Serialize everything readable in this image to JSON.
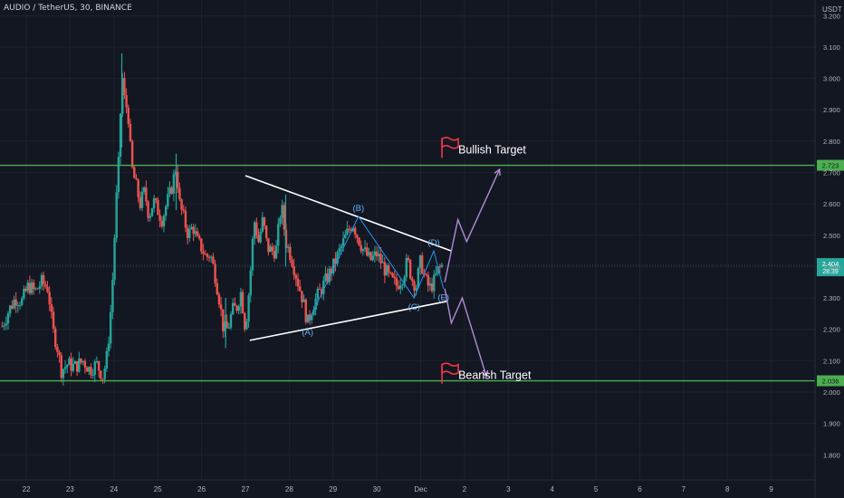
{
  "header": {
    "symbol_line": "AUDIO / TetherUS, 30, BINANCE",
    "price_unit": "USDT"
  },
  "colors": {
    "background": "#131722",
    "up": "#26a69a",
    "down": "#ef5350",
    "level": "#4caf50",
    "pattern": "#ffffff",
    "wave": "#2196f3",
    "projection": "#b28bd6",
    "flag": "#f23645"
  },
  "chart_data": {
    "type": "candlestick",
    "y_axis": {
      "range": [
        1.72,
        3.25
      ],
      "ticks": [
        "3.200",
        "3.100",
        "3.000",
        "2.900",
        "2.800",
        "2.700",
        "2.600",
        "2.500",
        "2.400",
        "2.300",
        "2.200",
        "2.100",
        "2.000",
        "1.900",
        "1.800"
      ],
      "tick_values": [
        3.2,
        3.1,
        3.0,
        2.9,
        2.8,
        2.7,
        2.6,
        2.5,
        2.4,
        2.3,
        2.2,
        2.1,
        2.0,
        1.9,
        1.8
      ]
    },
    "x_axis": {
      "range": [
        21.4,
        40.0
      ],
      "ticks": [
        "22",
        "23",
        "24",
        "25",
        "26",
        "27",
        "28",
        "29",
        "30",
        "Dec",
        "2",
        "3",
        "4",
        "5",
        "6",
        "7",
        "8",
        "9"
      ],
      "tick_values": [
        22,
        23,
        24,
        25,
        26,
        27,
        28,
        29,
        30,
        31,
        32,
        33,
        34,
        35,
        36,
        37,
        38,
        39
      ]
    },
    "price_path": [
      [
        21.45,
        2.21
      ],
      [
        21.6,
        2.26
      ],
      [
        21.75,
        2.3
      ],
      [
        21.9,
        2.29
      ],
      [
        22.05,
        2.34
      ],
      [
        22.2,
        2.32
      ],
      [
        22.35,
        2.35
      ],
      [
        22.5,
        2.33
      ],
      [
        22.6,
        2.2
      ],
      [
        22.7,
        2.15
      ],
      [
        22.8,
        2.07
      ],
      [
        22.95,
        2.09
      ],
      [
        23.1,
        2.08
      ],
      [
        23.3,
        2.1
      ],
      [
        23.45,
        2.07
      ],
      [
        23.6,
        2.09
      ],
      [
        23.75,
        2.05
      ],
      [
        23.85,
        2.12
      ],
      [
        23.95,
        2.3
      ],
      [
        24.05,
        2.6
      ],
      [
        24.12,
        2.76
      ],
      [
        24.18,
        3.02
      ],
      [
        24.25,
        2.92
      ],
      [
        24.32,
        2.9
      ],
      [
        24.4,
        2.72
      ],
      [
        24.5,
        2.66
      ],
      [
        24.6,
        2.6
      ],
      [
        24.7,
        2.64
      ],
      [
        24.8,
        2.56
      ],
      [
        24.9,
        2.61
      ],
      [
        25.0,
        2.58
      ],
      [
        25.1,
        2.55
      ],
      [
        25.2,
        2.6
      ],
      [
        25.3,
        2.64
      ],
      [
        25.42,
        2.72
      ],
      [
        25.5,
        2.6
      ],
      [
        25.6,
        2.55
      ],
      [
        25.7,
        2.5
      ],
      [
        25.8,
        2.53
      ],
      [
        25.9,
        2.48
      ],
      [
        26.0,
        2.46
      ],
      [
        26.1,
        2.43
      ],
      [
        26.2,
        2.44
      ],
      [
        26.3,
        2.38
      ],
      [
        26.4,
        2.3
      ],
      [
        26.5,
        2.2
      ],
      [
        26.6,
        2.2
      ],
      [
        26.7,
        2.26
      ],
      [
        26.8,
        2.27
      ],
      [
        26.9,
        2.32
      ],
      [
        27.0,
        2.2
      ],
      [
        27.1,
        2.35
      ],
      [
        27.2,
        2.55
      ],
      [
        27.3,
        2.48
      ],
      [
        27.4,
        2.55
      ],
      [
        27.5,
        2.46
      ],
      [
        27.6,
        2.45
      ],
      [
        27.7,
        2.45
      ],
      [
        27.82,
        2.6
      ],
      [
        27.92,
        2.48
      ],
      [
        28.05,
        2.43
      ],
      [
        28.2,
        2.35
      ],
      [
        28.3,
        2.3
      ],
      [
        28.42,
        2.22
      ],
      [
        28.55,
        2.28
      ],
      [
        28.7,
        2.32
      ],
      [
        28.85,
        2.36
      ],
      [
        29.0,
        2.4
      ],
      [
        29.15,
        2.45
      ],
      [
        29.3,
        2.5
      ],
      [
        29.45,
        2.54
      ],
      [
        29.55,
        2.5
      ],
      [
        29.7,
        2.45
      ],
      [
        29.85,
        2.42
      ],
      [
        30.0,
        2.44
      ],
      [
        30.15,
        2.4
      ],
      [
        30.3,
        2.36
      ],
      [
        30.45,
        2.34
      ],
      [
        30.6,
        2.37
      ],
      [
        30.7,
        2.42
      ],
      [
        30.8,
        2.36
      ],
      [
        30.9,
        2.34
      ],
      [
        31.0,
        2.42
      ],
      [
        31.1,
        2.36
      ],
      [
        31.2,
        2.33
      ],
      [
        31.3,
        2.35
      ],
      [
        31.4,
        2.39
      ],
      [
        31.5,
        2.404
      ]
    ],
    "candle_wicks": [
      [
        24.18,
        3.08,
        2.78
      ],
      [
        27.92,
        2.63,
        2.4
      ],
      [
        25.42,
        2.76,
        2.58
      ],
      [
        26.55,
        2.3,
        2.14
      ]
    ],
    "levels": [
      {
        "name": "resistance",
        "value": 2.723,
        "label": "2.723"
      },
      {
        "name": "current",
        "value": 2.404,
        "label": "2.404",
        "countdown": "28:39"
      },
      {
        "name": "support",
        "value": 2.036,
        "label": "2.036"
      }
    ],
    "triangle": {
      "upper": [
        [
          27.0,
          2.69
        ],
        [
          31.7,
          2.45
        ]
      ],
      "lower": [
        [
          27.1,
          2.165
        ],
        [
          31.62,
          2.29
        ]
      ]
    },
    "waves": [
      {
        "label": "(A)",
        "x": 28.42,
        "y": 2.22
      },
      {
        "label": "(B)",
        "x": 29.58,
        "y": 2.56
      },
      {
        "label": "(C)",
        "x": 30.85,
        "y": 2.3
      },
      {
        "label": "(D)",
        "x": 31.3,
        "y": 2.45
      },
      {
        "label": "(E)",
        "x": 31.52,
        "y": 2.33
      }
    ],
    "wave_path": [
      [
        28.42,
        2.22
      ],
      [
        29.58,
        2.56
      ],
      [
        30.85,
        2.3
      ],
      [
        31.3,
        2.45
      ],
      [
        31.52,
        2.33
      ]
    ],
    "projection_up": [
      [
        31.55,
        2.35
      ],
      [
        31.7,
        2.45
      ],
      [
        31.85,
        2.55
      ],
      [
        32.05,
        2.48
      ],
      [
        32.8,
        2.71
      ]
    ],
    "projection_down": [
      [
        31.55,
        2.33
      ],
      [
        31.7,
        2.22
      ],
      [
        31.95,
        2.3
      ],
      [
        32.5,
        2.05
      ]
    ],
    "targets": [
      {
        "label": "Bullish Target",
        "x": 31.9,
        "y": 2.77
      },
      {
        "label": "Bearish Target",
        "x": 31.9,
        "y": 2.05
      }
    ]
  }
}
